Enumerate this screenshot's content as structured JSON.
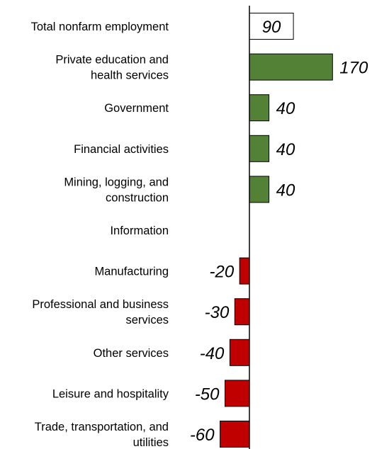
{
  "chart_data": {
    "type": "bar",
    "orientation": "horizontal",
    "title": "",
    "xlabel": "",
    "ylabel": "",
    "grid": false,
    "legend": "none",
    "colors": {
      "total": "#ffffff",
      "positive": "#538135",
      "negative": "#c00000",
      "outline": "#000000"
    },
    "categories": [
      [
        "Total nonfarm employment"
      ],
      [
        "Private education and",
        "health services"
      ],
      [
        "Government"
      ],
      [
        "Financial activities"
      ],
      [
        "Mining, logging, and",
        "construction"
      ],
      [
        "Information"
      ],
      [
        "Manufacturing"
      ],
      [
        "Professional and business",
        "services"
      ],
      [
        "Other services"
      ],
      [
        "Leisure and hospitality"
      ],
      [
        "Trade, transportation, and",
        "utilities"
      ]
    ],
    "values": [
      90,
      170,
      40,
      40,
      40,
      0,
      -20,
      -30,
      -40,
      -50,
      -60
    ],
    "value_labels": [
      "90",
      "170",
      "40",
      "40",
      "40",
      "",
      "-20",
      "-30",
      "-40",
      "-50",
      "-60"
    ],
    "kinds": [
      "total",
      "positive",
      "positive",
      "positive",
      "positive",
      "none",
      "negative",
      "negative",
      "negative",
      "negative",
      "negative"
    ]
  }
}
